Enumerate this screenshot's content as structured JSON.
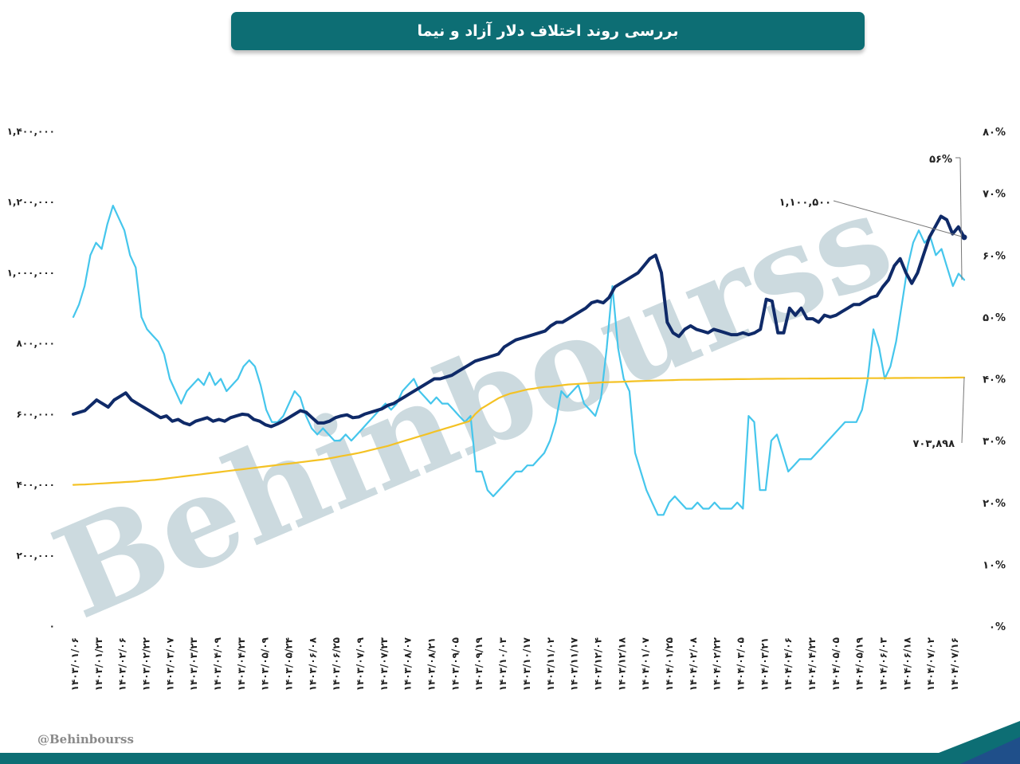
{
  "title": "بررسی روند اختلاف دلار آزاد و نیما",
  "watermark": "Behinbourss",
  "footer_handle": "@Behinbourss",
  "colors": {
    "banner": "#0d6e74",
    "free_dollar": "#0f2a68",
    "gap_percent": "#45c6ec",
    "nima": "#f4c224",
    "footer_band": "#0d6e74",
    "footer_accent": "#1f4f8a"
  },
  "chart_data": {
    "type": "line",
    "y_left_ticks": [
      "۰",
      "۲۰۰,۰۰۰",
      "۴۰۰,۰۰۰",
      "۶۰۰,۰۰۰",
      "۸۰۰,۰۰۰",
      "۱,۰۰۰,۰۰۰",
      "۱,۲۰۰,۰۰۰",
      "۱,۴۰۰,۰۰۰"
    ],
    "y_right_ticks": [
      "۰%",
      "۱۰%",
      "۲۰%",
      "۳۰%",
      "۴۰%",
      "۵۰%",
      "۶۰%",
      "۷۰%",
      "۸۰%"
    ],
    "ylim_left": [
      0,
      1400000
    ],
    "ylim_right": [
      0,
      80
    ],
    "x_ticks": [
      "۱۴۰۳/۰۱/۰۶",
      "۱۴۰۳/۰۱/۲۳",
      "۱۴۰۳/۰۲/۰۶",
      "۱۴۰۳/۰۲/۲۲",
      "۱۴۰۳/۰۳/۰۷",
      "۱۴۰۳/۰۳/۲۳",
      "۱۴۰۳/۰۴/۰۹",
      "۱۴۰۳/۰۴/۲۳",
      "۱۴۰۳/۰۵/۰۹",
      "۱۴۰۳/۰۵/۲۴",
      "۱۴۰۳/۰۶/۰۸",
      "۱۴۰۳/۰۶/۲۵",
      "۱۴۰۳/۰۷/۰۹",
      "۱۴۰۳/۰۷/۲۳",
      "۱۴۰۳/۰۸/۰۷",
      "۱۴۰۳/۰۸/۲۱",
      "۱۴۰۳/۰۹/۰۵",
      "۱۴۰۳/۰۹/۱۹",
      "۱۴۰۳/۱۰/۰۳",
      "۱۴۰۳/۱۰/۱۷",
      "۱۴۰۳/۱۱/۰۲",
      "۱۴۰۳/۱۱/۱۷",
      "۱۴۰۳/۱۲/۰۴",
      "۱۴۰۳/۱۲/۱۸",
      "۱۴۰۴/۰۱/۰۷",
      "۱۴۰۴/۰۱/۲۵",
      "۱۴۰۴/۰۲/۰۸",
      "۱۴۰۴/۰۲/۲۲",
      "۱۴۰۴/۰۳/۰۵",
      "۱۴۰۴/۰۳/۲۱",
      "۱۴۰۴/۰۴/۰۶",
      "۱۴۰۴/۰۴/۲۲",
      "۱۴۰۴/۰۵/۰۵",
      "۱۴۰۴/۰۵/۱۹",
      "۱۴۰۴/۰۶/۰۳",
      "۱۴۰۴/۰۶/۱۸",
      "۱۴۰۴/۰۷/۰۲",
      "۱۴۰۴/۰۷/۱۶"
    ],
    "annotations": {
      "gap_last": "۵۶%",
      "free_last": "۱,۱۰۰,۵۰۰",
      "nima_last": "۷۰۳,۸۹۸"
    },
    "series": [
      {
        "axis": "left",
        "values": [
          600000,
          605000,
          610000,
          625000,
          640000,
          630000,
          620000,
          640000,
          650000,
          660000,
          640000,
          630000,
          620000,
          610000,
          600000,
          590000,
          595000,
          580000,
          585000,
          575000,
          570000,
          580000,
          585000,
          590000,
          580000,
          585000,
          580000,
          590000,
          595000,
          600000,
          598000,
          585000,
          580000,
          570000,
          565000,
          572000,
          580000,
          590000,
          600000,
          610000,
          605000,
          590000,
          575000,
          575000,
          580000,
          590000,
          595000,
          598000,
          590000,
          592000,
          600000,
          605000,
          610000,
          615000,
          625000,
          630000,
          640000,
          650000,
          660000,
          670000,
          680000,
          690000,
          700000,
          700000,
          705000,
          710000,
          720000,
          730000,
          740000,
          750000,
          755000,
          760000,
          765000,
          770000,
          790000,
          800000,
          810000,
          815000,
          820000,
          825000,
          830000,
          835000,
          850000,
          860000,
          860000,
          870000,
          880000,
          890000,
          900000,
          915000,
          920000,
          915000,
          930000,
          960000,
          970000,
          980000,
          990000,
          1000000,
          1020000,
          1040000,
          1050000,
          1000000,
          860000,
          830000,
          820000,
          840000,
          850000,
          840000,
          835000,
          830000,
          840000,
          835000,
          830000,
          825000,
          825000,
          830000,
          825000,
          830000,
          840000,
          925000,
          920000,
          830000,
          830000,
          900000,
          880000,
          900000,
          870000,
          870000,
          860000,
          880000,
          875000,
          880000,
          890000,
          900000,
          910000,
          910000,
          920000,
          930000,
          935000,
          960000,
          980000,
          1020000,
          1040000,
          1000000,
          970000,
          1000000,
          1050000,
          1100000,
          1130000,
          1160000,
          1150000,
          1110000,
          1130000,
          1100500
        ]
      },
      {
        "axis": "right",
        "values": [
          50,
          52,
          55,
          60,
          62,
          61,
          65,
          68,
          66,
          64,
          60,
          58,
          50,
          48,
          47,
          46,
          44,
          40,
          38,
          36,
          38,
          39,
          40,
          39,
          41,
          39,
          40,
          38,
          39,
          40,
          42,
          43,
          42,
          39,
          35,
          33,
          33,
          34,
          36,
          38,
          37,
          34,
          32,
          31,
          32,
          31,
          30,
          30,
          31,
          30,
          31,
          32,
          33,
          34,
          35,
          36,
          35,
          36,
          38,
          39,
          40,
          38,
          37,
          36,
          37,
          36,
          36,
          35,
          34,
          33,
          34,
          25,
          25,
          22,
          21,
          22,
          23,
          24,
          25,
          25,
          26,
          26,
          27,
          28,
          30,
          33,
          38,
          37,
          38,
          39,
          36,
          35,
          34,
          37,
          45,
          55,
          45,
          40,
          38,
          28,
          25,
          22,
          20,
          18,
          18,
          20,
          21,
          20,
          19,
          19,
          20,
          19,
          19,
          20,
          19,
          19,
          19,
          20,
          19,
          34,
          33,
          22,
          22,
          30,
          31,
          28,
          25,
          26,
          27,
          27,
          27,
          28,
          29,
          30,
          31,
          32,
          33,
          33,
          33,
          35,
          40,
          48,
          45,
          40,
          42,
          46,
          52,
          58,
          62,
          64,
          62,
          63,
          60,
          61,
          58,
          55,
          57,
          56
        ]
      },
      {
        "axis": "left",
        "values": [
          400000,
          400500,
          401000,
          402000,
          403000,
          404000,
          405000,
          406000,
          407000,
          408000,
          409000,
          410000,
          412000,
          413000,
          414000,
          416000,
          418000,
          420000,
          422000,
          424000,
          426000,
          428000,
          430000,
          432000,
          434000,
          436000,
          438000,
          440000,
          442000,
          444000,
          446000,
          448000,
          450000,
          452000,
          454000,
          456000,
          458000,
          460000,
          462000,
          464000,
          466000,
          468000,
          470000,
          472000,
          475000,
          478000,
          481000,
          484000,
          487000,
          490000,
          494000,
          498000,
          502000,
          506000,
          510000,
          515000,
          520000,
          525000,
          530000,
          535000,
          540000,
          545000,
          550000,
          555000,
          560000,
          565000,
          570000,
          575000,
          580000,
          600000,
          615000,
          625000,
          635000,
          645000,
          652000,
          658000,
          662000,
          666000,
          670000,
          672000,
          675000,
          677000,
          678000,
          680000,
          682000,
          684000,
          685000,
          686000,
          687000,
          688000,
          689000,
          690000,
          690500,
          691000,
          691500,
          692000,
          693000,
          693500,
          694000,
          694500,
          695000,
          695500,
          696000,
          696500,
          697000,
          697200,
          697400,
          697600,
          697800,
          698000,
          698200,
          698400,
          698600,
          698800,
          699000,
          699200,
          699400,
          699600,
          699800,
          700000,
          700100,
          700200,
          700300,
          700400,
          700500,
          700600,
          700700,
          700800,
          700900,
          701000,
          701100,
          701200,
          701300,
          701400,
          701500,
          701600,
          701700,
          701800,
          701900,
          702000,
          702100,
          702200,
          702300,
          702400,
          702500,
          702600,
          702700,
          702800,
          702900,
          703000,
          703200,
          703400,
          703600,
          703898
        ]
      }
    ]
  }
}
